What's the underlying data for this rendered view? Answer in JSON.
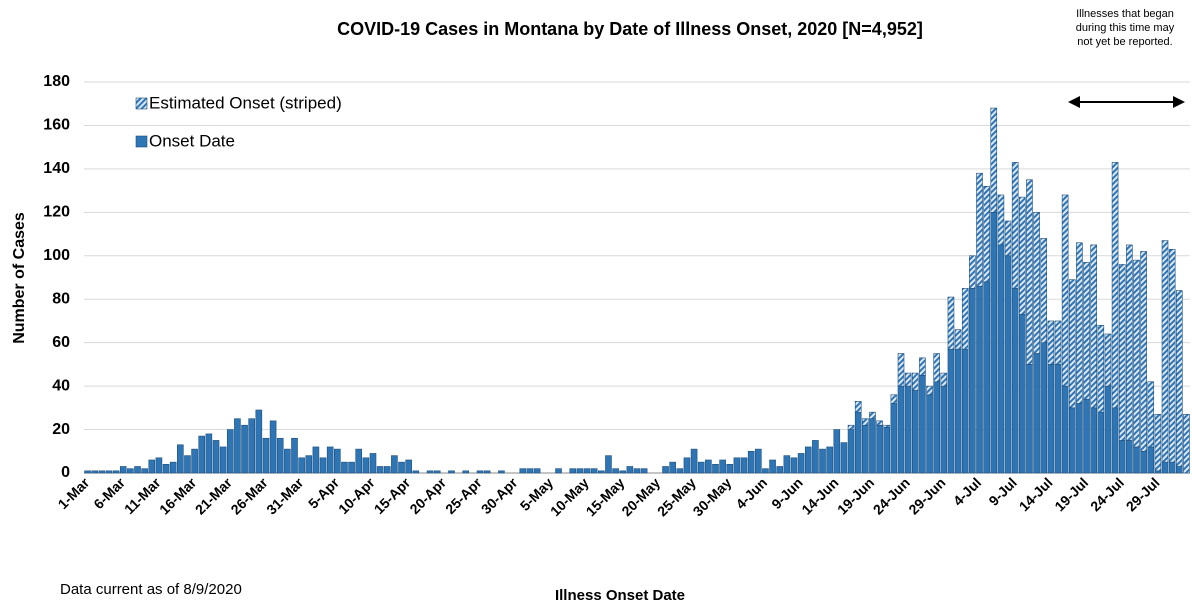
{
  "chart_data": {
    "type": "stacked_bar",
    "title": "COVID-19 Cases in Montana by Date of Illness Onset, 2020 [N=4,952]",
    "y_label": "Number of Cases",
    "x_label": "Illness Onset Date",
    "note": "Data current as of 8/9/2020",
    "annotation": [
      "Illnesses that began",
      "during this time may",
      "not yet be reported."
    ],
    "categories": [
      "1-Mar",
      null,
      null,
      null,
      null,
      "6-Mar",
      null,
      null,
      null,
      null,
      "11-Mar",
      null,
      null,
      null,
      null,
      "16-Mar",
      null,
      null,
      null,
      null,
      "21-Mar",
      null,
      null,
      null,
      null,
      "26-Mar",
      null,
      null,
      null,
      null,
      "31-Mar",
      null,
      null,
      null,
      null,
      "5-Apr",
      null,
      null,
      null,
      null,
      "10-Apr",
      null,
      null,
      null,
      null,
      "15-Apr",
      null,
      null,
      null,
      null,
      "20-Apr",
      null,
      null,
      null,
      null,
      "25-Apr",
      null,
      null,
      null,
      null,
      "30-Apr",
      null,
      null,
      null,
      null,
      "5-May",
      null,
      null,
      null,
      null,
      "10-May",
      null,
      null,
      null,
      null,
      "15-May",
      null,
      null,
      null,
      null,
      "20-May",
      null,
      null,
      null,
      null,
      "25-May",
      null,
      null,
      null,
      null,
      "30-May",
      null,
      null,
      null,
      null,
      "4-Jun",
      null,
      null,
      null,
      null,
      "9-Jun",
      null,
      null,
      null,
      null,
      "14-Jun",
      null,
      null,
      null,
      null,
      "19-Jun",
      null,
      null,
      null,
      null,
      "24-Jun",
      null,
      null,
      null,
      null,
      "29-Jun",
      null,
      null,
      null,
      null,
      "4-Jul",
      null,
      null,
      null,
      null,
      "9-Jul",
      null,
      null,
      null,
      null,
      "14-Jul",
      null,
      null,
      null,
      null,
      "19-Jul",
      null,
      null,
      null,
      null,
      "24-Jul",
      null,
      null,
      null,
      null,
      "29-Jul",
      null,
      null,
      null,
      null
    ],
    "series": [
      {
        "name": "Onset Date",
        "color": "#2e75b6",
        "hatch": false,
        "values": [
          1,
          1,
          1,
          1,
          1,
          3,
          2,
          3,
          2,
          6,
          7,
          4,
          5,
          13,
          8,
          11,
          17,
          18,
          15,
          12,
          20,
          25,
          22,
          25,
          29,
          16,
          24,
          16,
          11,
          16,
          7,
          8,
          12,
          7,
          12,
          11,
          5,
          5,
          11,
          7,
          9,
          3,
          3,
          8,
          5,
          6,
          1,
          0,
          1,
          1,
          0,
          1,
          0,
          1,
          0,
          1,
          1,
          0,
          1,
          0,
          0,
          2,
          2,
          2,
          0,
          0,
          2,
          0,
          2,
          2,
          2,
          2,
          1,
          8,
          2,
          1,
          3,
          2,
          2,
          0,
          0,
          3,
          5,
          2,
          7,
          11,
          5,
          6,
          4,
          6,
          4,
          7,
          7,
          10,
          11,
          2,
          6,
          3,
          8,
          7,
          9,
          12,
          15,
          11,
          12,
          20,
          14,
          20,
          28,
          22,
          25,
          22,
          21,
          32,
          40,
          40,
          38,
          45,
          36,
          42,
          40,
          57,
          57,
          57,
          85,
          86,
          88,
          120,
          105,
          100,
          85,
          73,
          50,
          55,
          60,
          50,
          50,
          40,
          30,
          32,
          34,
          30,
          28,
          40,
          30,
          15,
          15,
          12,
          10,
          12,
          1,
          5,
          5,
          3,
          0
        ]
      },
      {
        "name": "Estimated Onset (striped)",
        "color": "#2e75b6",
        "hatch": true,
        "values": [
          0,
          0,
          0,
          0,
          0,
          0,
          0,
          0,
          0,
          0,
          0,
          0,
          0,
          0,
          0,
          0,
          0,
          0,
          0,
          0,
          0,
          0,
          0,
          0,
          0,
          0,
          0,
          0,
          0,
          0,
          0,
          0,
          0,
          0,
          0,
          0,
          0,
          0,
          0,
          0,
          0,
          0,
          0,
          0,
          0,
          0,
          0,
          0,
          0,
          0,
          0,
          0,
          0,
          0,
          0,
          0,
          0,
          0,
          0,
          0,
          0,
          0,
          0,
          0,
          0,
          0,
          0,
          0,
          0,
          0,
          0,
          0,
          0,
          0,
          0,
          0,
          0,
          0,
          0,
          0,
          0,
          0,
          0,
          0,
          0,
          0,
          0,
          0,
          0,
          0,
          0,
          0,
          0,
          0,
          0,
          0,
          0,
          0,
          0,
          0,
          0,
          0,
          0,
          0,
          0,
          0,
          0,
          2,
          5,
          3,
          3,
          2,
          1,
          4,
          15,
          6,
          8,
          8,
          4,
          13,
          6,
          24,
          9,
          28,
          15,
          52,
          44,
          48,
          23,
          16,
          58,
          54,
          85,
          65,
          48,
          20,
          20,
          88,
          59,
          74,
          63,
          75,
          40,
          24,
          113,
          81,
          90,
          86,
          92,
          30,
          26,
          102,
          98,
          81,
          27
        ]
      }
    ],
    "ylim": [
      0,
      180
    ],
    "yticks": [
      0,
      20,
      40,
      60,
      80,
      100,
      120,
      140,
      160,
      180
    ],
    "grid": true
  }
}
